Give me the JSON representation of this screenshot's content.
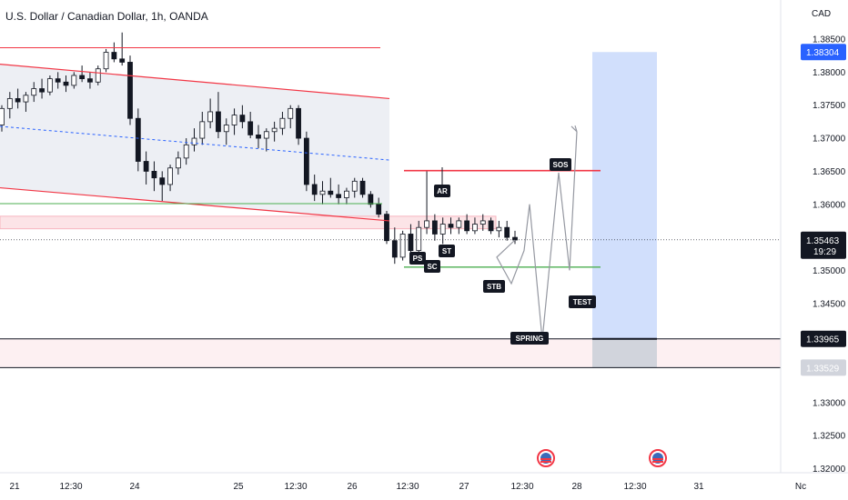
{
  "header": {
    "symbol_title": "U.S. Dollar / Canadian Dollar, 1h, OANDA"
  },
  "axis": {
    "currency": "CAD"
  },
  "colors": {
    "up": "#131722",
    "down": "#131722",
    "channel": "#f23645",
    "channel_fill": "#e6e8ef",
    "support": "#4caf50",
    "resistance": "#f23645",
    "mid": "#2962ff",
    "target_fill": "#c9d9fb",
    "stop_fill": "#d1d4dc",
    "zone_fill": "#fce4e7"
  },
  "chart_data": {
    "type": "candlestick",
    "ylim": [
      1.3185,
      1.3895
    ],
    "y_ticks": [
      "1.38500",
      "1.38000",
      "1.37500",
      "1.37000",
      "1.36500",
      "1.36000",
      "1.35500",
      "1.35000",
      "1.34500",
      "1.34000",
      "1.33500",
      "1.33000",
      "1.32500",
      "1.32000"
    ],
    "y_tick_values": [
      1.385,
      1.38,
      1.375,
      1.37,
      1.365,
      1.36,
      1.355,
      1.35,
      1.345,
      1.34,
      1.335,
      1.33,
      1.325,
      1.32
    ],
    "x_ticks": [
      "21",
      "12:30",
      "24",
      "25",
      "12:30",
      "26",
      "12:30",
      "27",
      "12:30",
      "28",
      "12:30",
      "31",
      "Nc"
    ],
    "price_labels": {
      "target": "1.38304",
      "current": "1.35463",
      "countdown": "19:29",
      "entry": "1.33965",
      "stop": "1.33529"
    },
    "price_values": {
      "target": 1.38304,
      "current": 1.35463,
      "entry": 1.33965,
      "stop": 1.33529
    },
    "levels": {
      "resistance": 1.3651,
      "support": 1.3505,
      "upper_line": 1.3837,
      "accum_top": 1.3582,
      "accum_bottom": 1.3563,
      "green_top": 1.3601
    },
    "annotations": [
      "AR",
      "ST",
      "PS",
      "SC",
      "STB",
      "SOS",
      "TEST",
      "SPRING"
    ],
    "candles": [
      [
        1.372,
        1.375,
        1.371,
        1.3745
      ],
      [
        1.3745,
        1.377,
        1.373,
        1.376
      ],
      [
        1.376,
        1.3775,
        1.3745,
        1.3755
      ],
      [
        1.3755,
        1.377,
        1.374,
        1.3765
      ],
      [
        1.3765,
        1.3785,
        1.3755,
        1.3775
      ],
      [
        1.3775,
        1.379,
        1.376,
        1.377
      ],
      [
        1.377,
        1.3795,
        1.3765,
        1.379
      ],
      [
        1.379,
        1.38,
        1.3775,
        1.3785
      ],
      [
        1.3785,
        1.3795,
        1.377,
        1.378
      ],
      [
        1.378,
        1.38,
        1.3775,
        1.3795
      ],
      [
        1.3795,
        1.381,
        1.3785,
        1.379
      ],
      [
        1.379,
        1.38,
        1.3775,
        1.3785
      ],
      [
        1.3785,
        1.381,
        1.378,
        1.3805
      ],
      [
        1.3805,
        1.3835,
        1.38,
        1.383
      ],
      [
        1.383,
        1.3845,
        1.3815,
        1.382
      ],
      [
        1.382,
        1.386,
        1.381,
        1.3815
      ],
      [
        1.3815,
        1.3825,
        1.372,
        1.373
      ],
      [
        1.373,
        1.3745,
        1.365,
        1.3665
      ],
      [
        1.3665,
        1.368,
        1.363,
        1.365
      ],
      [
        1.365,
        1.3665,
        1.362,
        1.364
      ],
      [
        1.364,
        1.365,
        1.3605,
        1.363
      ],
      [
        1.363,
        1.366,
        1.362,
        1.3655
      ],
      [
        1.3655,
        1.368,
        1.3645,
        1.367
      ],
      [
        1.367,
        1.37,
        1.366,
        1.369
      ],
      [
        1.369,
        1.3715,
        1.368,
        1.37
      ],
      [
        1.37,
        1.374,
        1.369,
        1.3725
      ],
      [
        1.3725,
        1.376,
        1.3715,
        1.374
      ],
      [
        1.374,
        1.377,
        1.37,
        1.371
      ],
      [
        1.371,
        1.373,
        1.369,
        1.372
      ],
      [
        1.372,
        1.3745,
        1.3705,
        1.3735
      ],
      [
        1.3735,
        1.375,
        1.3715,
        1.3725
      ],
      [
        1.3725,
        1.374,
        1.37,
        1.3705
      ],
      [
        1.3705,
        1.372,
        1.3685,
        1.37
      ],
      [
        1.37,
        1.3715,
        1.368,
        1.371
      ],
      [
        1.371,
        1.3725,
        1.3695,
        1.3715
      ],
      [
        1.3715,
        1.374,
        1.3705,
        1.373
      ],
      [
        1.373,
        1.375,
        1.3715,
        1.3745
      ],
      [
        1.3745,
        1.375,
        1.369,
        1.37
      ],
      [
        1.37,
        1.371,
        1.362,
        1.363
      ],
      [
        1.363,
        1.3645,
        1.3605,
        1.3615
      ],
      [
        1.3615,
        1.3635,
        1.36,
        1.362
      ],
      [
        1.362,
        1.364,
        1.361,
        1.3615
      ],
      [
        1.3615,
        1.363,
        1.36,
        1.361
      ],
      [
        1.361,
        1.3625,
        1.36,
        1.362
      ],
      [
        1.362,
        1.364,
        1.361,
        1.3635
      ],
      [
        1.3635,
        1.364,
        1.361,
        1.3615
      ],
      [
        1.3615,
        1.362,
        1.3595,
        1.36
      ],
      [
        1.36,
        1.361,
        1.358,
        1.3585
      ],
      [
        1.3585,
        1.359,
        1.354,
        1.3545
      ],
      [
        1.3545,
        1.3565,
        1.351,
        1.352
      ],
      [
        1.352,
        1.356,
        1.3515,
        1.3555
      ],
      [
        1.3555,
        1.357,
        1.352,
        1.353
      ],
      [
        1.353,
        1.3575,
        1.3525,
        1.3565
      ],
      [
        1.3565,
        1.365,
        1.3555,
        1.3575
      ],
      [
        1.3575,
        1.3585,
        1.3545,
        1.3555
      ],
      [
        1.3555,
        1.358,
        1.354,
        1.357
      ],
      [
        1.357,
        1.358,
        1.3555,
        1.3565
      ],
      [
        1.3565,
        1.358,
        1.3555,
        1.3575
      ],
      [
        1.3575,
        1.3585,
        1.3555,
        1.356
      ],
      [
        1.356,
        1.358,
        1.3555,
        1.357
      ],
      [
        1.357,
        1.3585,
        1.356,
        1.3575
      ],
      [
        1.3575,
        1.358,
        1.3555,
        1.356
      ],
      [
        1.356,
        1.3575,
        1.355,
        1.3565
      ],
      [
        1.3565,
        1.3575,
        1.3545,
        1.355
      ],
      [
        1.355,
        1.356,
        1.354,
        1.3546
      ]
    ],
    "projection": [
      [
        1.3565,
        1.352
      ],
      [
        1.3582,
        1.348
      ],
      [
        1.359,
        1.353
      ],
      [
        1.36,
        1.36
      ],
      [
        1.3612,
        1.3395
      ],
      [
        1.3622,
        1.3648
      ],
      [
        1.364,
        1.35
      ],
      [
        1.366,
        1.371
      ]
    ]
  }
}
